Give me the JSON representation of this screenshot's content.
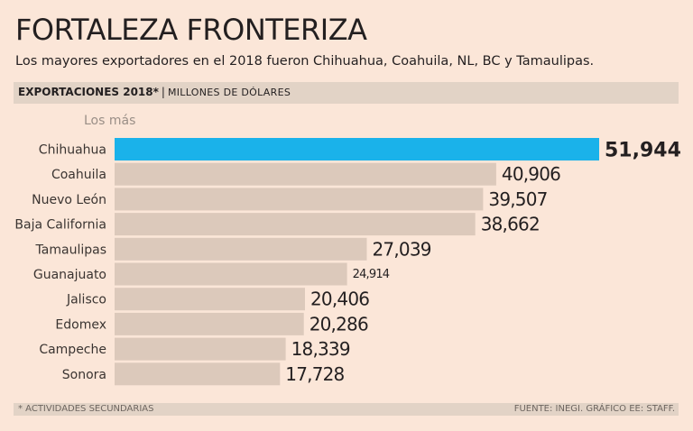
{
  "header": {
    "title": "FORTALEZA FRONTERIZA",
    "subtitle": "Los mayores exportadores en el 2018 fueron Chihuahua, Coahuila, NL, BC y Tamaulipas."
  },
  "band": {
    "label_bold": "EXPORTACIONES 2018*",
    "separator": "|",
    "unit": "MILLONES DE DÓLARES"
  },
  "group_label": "Los más",
  "footer": {
    "note": "* ACTIVIDADES SECUNDARIAS",
    "source": "FUENTE: INEGI. GRÁFICO EE: STAFF."
  },
  "colors": {
    "highlight": "#1ab2ea",
    "bar": "#dcc9bb",
    "background": "#fbe6d8"
  },
  "chart_data": {
    "type": "bar",
    "orientation": "horizontal",
    "title": "EXPORTACIONES 2018*",
    "xlabel": "MILLONES DE DÓLARES",
    "ylabel": "",
    "categories": [
      "Chihuahua",
      "Coahuila",
      "Nuevo León",
      "Baja California",
      "Tamaulipas",
      "Guanajuato",
      "Jalisco",
      "Edomex",
      "Campeche",
      "Sonora"
    ],
    "values": [
      51944,
      40906,
      39507,
      38662,
      27039,
      24914,
      20406,
      20286,
      18339,
      17728
    ],
    "value_labels": [
      "51,944",
      "40,906",
      "39,507",
      "38,662",
      "27,039",
      "24,914",
      "20,406",
      "20,286",
      "18,339",
      "17,728"
    ],
    "highlight_index": 0,
    "xlim": [
      0,
      51944
    ],
    "grid": false
  }
}
